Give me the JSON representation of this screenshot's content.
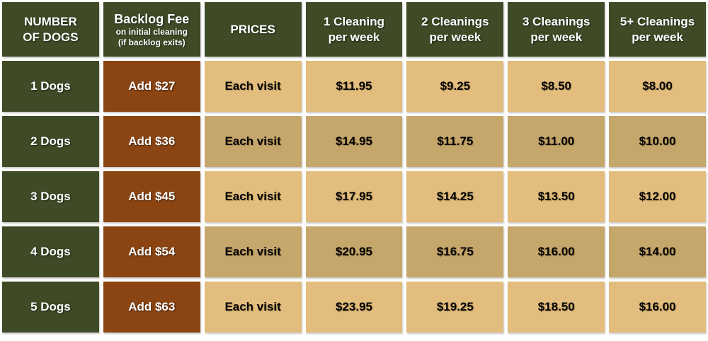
{
  "chart_data": {
    "type": "table",
    "columns": [
      "NUMBER OF DOGS",
      "Backlog Fee on initial cleaning (if backlog exits)",
      "PRICES",
      "1 Cleaning per week",
      "2 Cleanings per week",
      "3 Cleanings per week",
      "5+ Cleanings per week"
    ],
    "rows": [
      [
        "1 Dogs",
        "Add $27",
        "Each visit",
        "$11.95",
        "$9.25",
        "$8.50",
        "$8.00"
      ],
      [
        "2 Dogs",
        "Add $36",
        "Each visit",
        "$14.95",
        "$11.75",
        "$11.00",
        "$10.00"
      ],
      [
        "3 Dogs",
        "Add $45",
        "Each visit",
        "$17.95",
        "$14.25",
        "$13.50",
        "$12.00"
      ],
      [
        "4 Dogs",
        "Add $54",
        "Each visit",
        "$20.95",
        "$16.75",
        "$16.00",
        "$14.00"
      ],
      [
        "5 Dogs",
        "Add $63",
        "Each visit",
        "$23.95",
        "$19.25",
        "$18.50",
        "$16.00"
      ]
    ]
  },
  "headers": {
    "dogs": {
      "lines": [
        "NUMBER",
        "OF DOGS"
      ]
    },
    "backlog": {
      "title": "Backlog Fee",
      "sub1": "on initial cleaning",
      "sub2": "(if backlog exits)"
    },
    "prices": {
      "title": "PRICES"
    },
    "clean1": {
      "lines": [
        "1 Cleaning",
        "per week"
      ]
    },
    "clean2": {
      "lines": [
        "2 Cleanings",
        "per week"
      ]
    },
    "clean3": {
      "lines": [
        "3 Cleanings",
        "per week"
      ]
    },
    "clean5": {
      "lines": [
        "5+ Cleanings",
        "per week"
      ]
    }
  },
  "colors": {
    "header_green": "#3F4B27",
    "fee_brown": "#8B4513",
    "tan_light": "#E2BD7D",
    "tan_dark": "#C5A66B",
    "gap_white": "#FFFFFF",
    "text_light": "#FFFFFF",
    "text_dark": "#000000"
  }
}
